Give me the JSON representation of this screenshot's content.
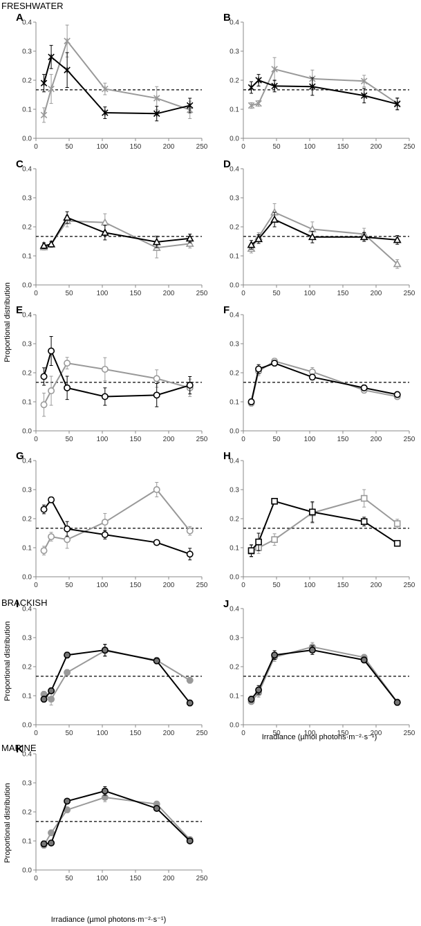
{
  "sections": [
    "FRESHWATER",
    "BRACKISH",
    "MARINE"
  ],
  "ylabel": "Proportional distribution",
  "xlabel": "Irradiance (µmol photons·m⁻²·s⁻¹)",
  "colors": {
    "dark": "#000000",
    "light": "#999999",
    "reference": "#000000"
  },
  "chart_data": [
    {
      "panel": "A",
      "type": "line",
      "marker": "x-star",
      "xlim": [
        0,
        250
      ],
      "ylim": [
        0,
        0.4
      ],
      "xticks": [
        "0",
        "50",
        "100",
        "150",
        "200",
        "250"
      ],
      "yticks": [
        "0.0",
        "0.1",
        "0.2",
        "0.3",
        "0.4"
      ],
      "reference": 0.167,
      "x": [
        12,
        23,
        47,
        104,
        182,
        232
      ],
      "series": [
        {
          "name": "dark",
          "values": [
            0.19,
            0.28,
            0.235,
            0.088,
            0.085,
            0.113
          ],
          "err": [
            0.03,
            0.04,
            0.06,
            0.02,
            0.025,
            0.025
          ]
        },
        {
          "name": "light",
          "values": [
            0.08,
            0.17,
            0.335,
            0.17,
            0.138,
            0.098
          ],
          "err": [
            0.025,
            0.05,
            0.055,
            0.02,
            0.04,
            0.03
          ]
        }
      ]
    },
    {
      "panel": "B",
      "type": "line",
      "marker": "x-star",
      "xlim": [
        0,
        250
      ],
      "ylim": [
        0,
        0.4
      ],
      "xticks": [
        "0",
        "50",
        "100",
        "150",
        "200",
        "250"
      ],
      "yticks": [
        "0.0",
        "0.1",
        "0.2",
        "0.3",
        "0.4"
      ],
      "reference": 0.167,
      "x": [
        12,
        23,
        47,
        104,
        182,
        232
      ],
      "series": [
        {
          "name": "dark",
          "values": [
            0.175,
            0.2,
            0.18,
            0.178,
            0.147,
            0.118
          ],
          "err": [
            0.02,
            0.02,
            0.02,
            0.03,
            0.025,
            0.02
          ]
        },
        {
          "name": "light",
          "values": [
            0.113,
            0.12,
            0.238,
            0.205,
            0.197,
            0.12
          ],
          "err": [
            0.01,
            0.01,
            0.04,
            0.03,
            0.02,
            0.02
          ]
        }
      ]
    },
    {
      "panel": "C",
      "type": "line",
      "marker": "triangle",
      "xlim": [
        0,
        250
      ],
      "ylim": [
        0,
        0.4
      ],
      "xticks": [
        "0",
        "50",
        "100",
        "150",
        "200",
        "250"
      ],
      "yticks": [
        "0.0",
        "0.1",
        "0.2",
        "0.3",
        "0.4"
      ],
      "reference": 0.167,
      "x": [
        12,
        23,
        47,
        104,
        182,
        232
      ],
      "series": [
        {
          "name": "dark",
          "values": [
            0.135,
            0.14,
            0.232,
            0.18,
            0.148,
            0.16
          ],
          "err": [
            0.01,
            0.01,
            0.02,
            0.025,
            0.02,
            0.015
          ]
        },
        {
          "name": "light",
          "values": [
            0.13,
            0.14,
            0.22,
            0.215,
            0.128,
            0.142
          ],
          "err": [
            0.01,
            0.01,
            0.02,
            0.03,
            0.035,
            0.015
          ]
        }
      ]
    },
    {
      "panel": "D",
      "type": "line",
      "marker": "triangle",
      "xlim": [
        0,
        250
      ],
      "ylim": [
        0,
        0.4
      ],
      "xticks": [
        "0",
        "50",
        "100",
        "150",
        "200",
        "250"
      ],
      "yticks": [
        "0.0",
        "0.1",
        "0.2",
        "0.3",
        "0.4"
      ],
      "reference": 0.167,
      "x": [
        12,
        23,
        47,
        104,
        182,
        232
      ],
      "series": [
        {
          "name": "dark",
          "values": [
            0.138,
            0.158,
            0.225,
            0.165,
            0.165,
            0.155
          ],
          "err": [
            0.015,
            0.015,
            0.025,
            0.02,
            0.015,
            0.015
          ]
        },
        {
          "name": "light",
          "values": [
            0.125,
            0.165,
            0.25,
            0.192,
            0.175,
            0.072
          ],
          "err": [
            0.015,
            0.015,
            0.03,
            0.025,
            0.02,
            0.015
          ]
        }
      ]
    },
    {
      "panel": "E",
      "type": "line",
      "marker": "circle-open",
      "xlim": [
        0,
        250
      ],
      "ylim": [
        0,
        0.4
      ],
      "xticks": [
        "0",
        "50",
        "100",
        "150",
        "200",
        "250"
      ],
      "yticks": [
        "0.0",
        "0.1",
        "0.2",
        "0.3",
        "0.4"
      ],
      "reference": 0.167,
      "x": [
        12,
        23,
        47,
        104,
        182,
        232
      ],
      "series": [
        {
          "name": "dark",
          "values": [
            0.187,
            0.275,
            0.148,
            0.118,
            0.123,
            0.157
          ],
          "err": [
            0.03,
            0.05,
            0.04,
            0.03,
            0.04,
            0.03
          ]
        },
        {
          "name": "light",
          "values": [
            0.09,
            0.138,
            0.233,
            0.212,
            0.18,
            0.148
          ],
          "err": [
            0.04,
            0.05,
            0.02,
            0.04,
            0.03,
            0.03
          ]
        }
      ]
    },
    {
      "panel": "F",
      "type": "line",
      "marker": "circle-open",
      "xlim": [
        0,
        250
      ],
      "ylim": [
        0,
        0.4
      ],
      "xticks": [
        "0",
        "50",
        "100",
        "150",
        "200",
        "250"
      ],
      "yticks": [
        "0.0",
        "0.1",
        "0.2",
        "0.3",
        "0.4"
      ],
      "reference": 0.167,
      "x": [
        12,
        23,
        47,
        104,
        182,
        232
      ],
      "series": [
        {
          "name": "dark",
          "values": [
            0.1,
            0.213,
            0.233,
            0.185,
            0.148,
            0.125
          ],
          "err": [
            0.01,
            0.015,
            0.01,
            0.01,
            0.01,
            0.01
          ]
        },
        {
          "name": "light",
          "values": [
            0.095,
            0.205,
            0.24,
            0.203,
            0.14,
            0.118
          ],
          "err": [
            0.01,
            0.015,
            0.01,
            0.015,
            0.01,
            0.01
          ]
        }
      ]
    },
    {
      "panel": "G",
      "type": "line",
      "marker": "circle-open",
      "xlim": [
        0,
        250
      ],
      "ylim": [
        0,
        0.4
      ],
      "xticks": [
        "0",
        "50",
        "100",
        "150",
        "200",
        "250"
      ],
      "yticks": [
        "0.0",
        "0.1",
        "0.2",
        "0.3",
        "0.4"
      ],
      "reference": 0.167,
      "x": [
        12,
        23,
        47,
        104,
        182,
        232
      ],
      "series": [
        {
          "name": "dark",
          "values": [
            0.232,
            0.265,
            0.165,
            0.145,
            0.118,
            0.078
          ],
          "err": [
            0.015,
            0.01,
            0.025,
            0.015,
            0.005,
            0.02
          ]
        },
        {
          "name": "light",
          "values": [
            0.09,
            0.138,
            0.128,
            0.188,
            0.3,
            0.158
          ],
          "err": [
            0.015,
            0.015,
            0.03,
            0.03,
            0.025,
            0.015
          ]
        }
      ]
    },
    {
      "panel": "H",
      "type": "line",
      "marker": "square-open",
      "xlim": [
        0,
        250
      ],
      "ylim": [
        0,
        0.4
      ],
      "xticks": [
        "0",
        "50",
        "100",
        "150",
        "200",
        "250"
      ],
      "yticks": [
        "0.0",
        "0.1",
        "0.2",
        "0.3",
        "0.4"
      ],
      "reference": 0.167,
      "x": [
        12,
        23,
        47,
        104,
        182,
        232
      ],
      "series": [
        {
          "name": "dark",
          "values": [
            0.09,
            0.12,
            0.26,
            0.223,
            0.19,
            0.115
          ],
          "err": [
            0.02,
            0.03,
            0.01,
            0.035,
            0.015,
            0.005
          ]
        },
        {
          "name": "light",
          "values": [
            0.088,
            0.1,
            0.128,
            0.22,
            0.27,
            0.183
          ],
          "err": [
            0.02,
            0.02,
            0.02,
            0.035,
            0.03,
            0.015
          ]
        }
      ]
    },
    {
      "panel": "I",
      "type": "line",
      "marker": "circle-filled",
      "xlim": [
        0,
        250
      ],
      "ylim": [
        0,
        0.4
      ],
      "xticks": [
        "0",
        "50",
        "100",
        "150",
        "200",
        "250"
      ],
      "yticks": [
        "0.0",
        "0.1",
        "0.2",
        "0.3",
        "0.4"
      ],
      "reference": 0.167,
      "x": [
        12,
        23,
        47,
        104,
        182,
        232
      ],
      "series": [
        {
          "name": "dark",
          "values": [
            0.088,
            0.117,
            0.24,
            0.257,
            0.22,
            0.075
          ],
          "err": [
            0.01,
            0.01,
            0.01,
            0.02,
            0.01,
            0.01
          ]
        },
        {
          "name": "light",
          "values": [
            0.105,
            0.088,
            0.18,
            0.255,
            0.222,
            0.153
          ],
          "err": [
            0.01,
            0.02,
            0.01,
            0.02,
            0.01,
            0.01
          ]
        }
      ]
    },
    {
      "panel": "J",
      "type": "line",
      "marker": "circle-filled",
      "xlim": [
        0,
        250
      ],
      "ylim": [
        0,
        0.4
      ],
      "xticks": [
        "0",
        "50",
        "100",
        "150",
        "200",
        "250"
      ],
      "yticks": [
        "0.0",
        "0.1",
        "0.2",
        "0.3",
        "0.4"
      ],
      "reference": 0.167,
      "x": [
        12,
        23,
        47,
        104,
        182,
        232
      ],
      "series": [
        {
          "name": "dark",
          "values": [
            0.088,
            0.12,
            0.24,
            0.257,
            0.223,
            0.077
          ],
          "err": [
            0.01,
            0.015,
            0.015,
            0.015,
            0.01,
            0.01
          ]
        },
        {
          "name": "light",
          "values": [
            0.08,
            0.11,
            0.233,
            0.268,
            0.232,
            0.078
          ],
          "err": [
            0.01,
            0.015,
            0.015,
            0.015,
            0.01,
            0.01
          ]
        }
      ]
    },
    {
      "panel": "K",
      "type": "line",
      "marker": "circle-filled",
      "xlim": [
        0,
        250
      ],
      "ylim": [
        0,
        0.4
      ],
      "xticks": [
        "0",
        "50",
        "100",
        "150",
        "200",
        "250"
      ],
      "yticks": [
        "0.0",
        "0.1",
        "0.2",
        "0.3",
        "0.4"
      ],
      "reference": 0.167,
      "x": [
        12,
        23,
        47,
        104,
        182,
        232
      ],
      "series": [
        {
          "name": "dark",
          "values": [
            0.09,
            0.093,
            0.237,
            0.272,
            0.212,
            0.1
          ],
          "err": [
            0.01,
            0.005,
            0.005,
            0.015,
            0.005,
            0.005
          ]
        },
        {
          "name": "light",
          "values": [
            0.085,
            0.128,
            0.207,
            0.25,
            0.227,
            0.105
          ],
          "err": [
            0.01,
            0.01,
            0.01,
            0.015,
            0.01,
            0.005
          ]
        }
      ]
    }
  ]
}
